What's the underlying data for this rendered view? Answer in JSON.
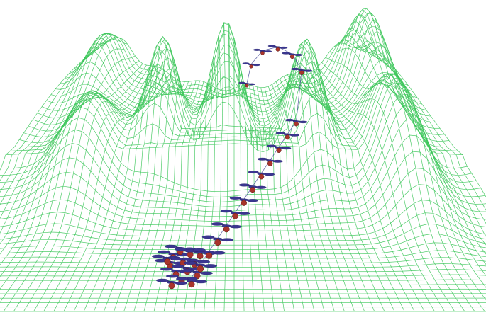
{
  "scene": {
    "type": "3d-wireframe-terrain-with-drone-trajectory",
    "background_color": "#ffffff",
    "terrain_color": "#3cc65a",
    "drone_rotor_color": "#3a3690",
    "drone_body_color": "#a8342c",
    "trajectory_color": "#4a4f9a",
    "drone_count_along_path": 19,
    "swarm_at_start": true,
    "text_labels": []
  }
}
